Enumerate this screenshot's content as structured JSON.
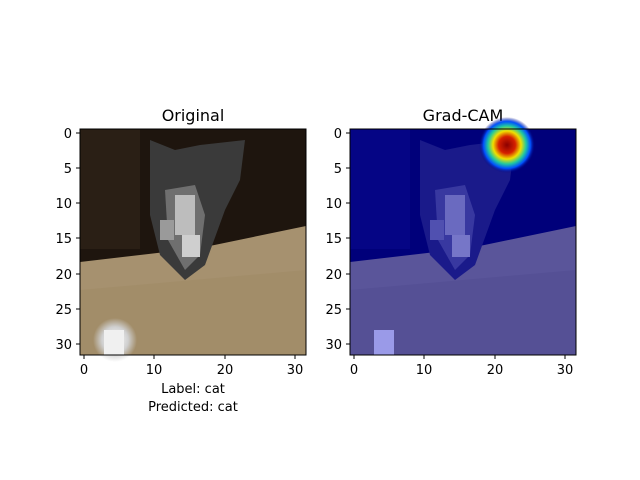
{
  "panels": [
    {
      "title": "Original",
      "x_ticks": [
        "0",
        "10",
        "20",
        "30"
      ],
      "y_ticks": [
        "0",
        "5",
        "10",
        "15",
        "20",
        "25",
        "30"
      ]
    },
    {
      "title": "Grad-CAM",
      "x_ticks": [
        "0",
        "10",
        "20",
        "30"
      ],
      "y_ticks": [
        "0",
        "5",
        "10",
        "15",
        "20",
        "25",
        "30"
      ]
    }
  ],
  "caption": {
    "label_line": "Label: cat",
    "predicted_line": "Predicted: cat"
  },
  "colors": {
    "dark_background": "#1e150e",
    "floor": "#a6916f",
    "cat_gray": "#4d4d4d",
    "heatmap_base": "#00007a",
    "heatmap_hot": "#8b0000"
  }
}
